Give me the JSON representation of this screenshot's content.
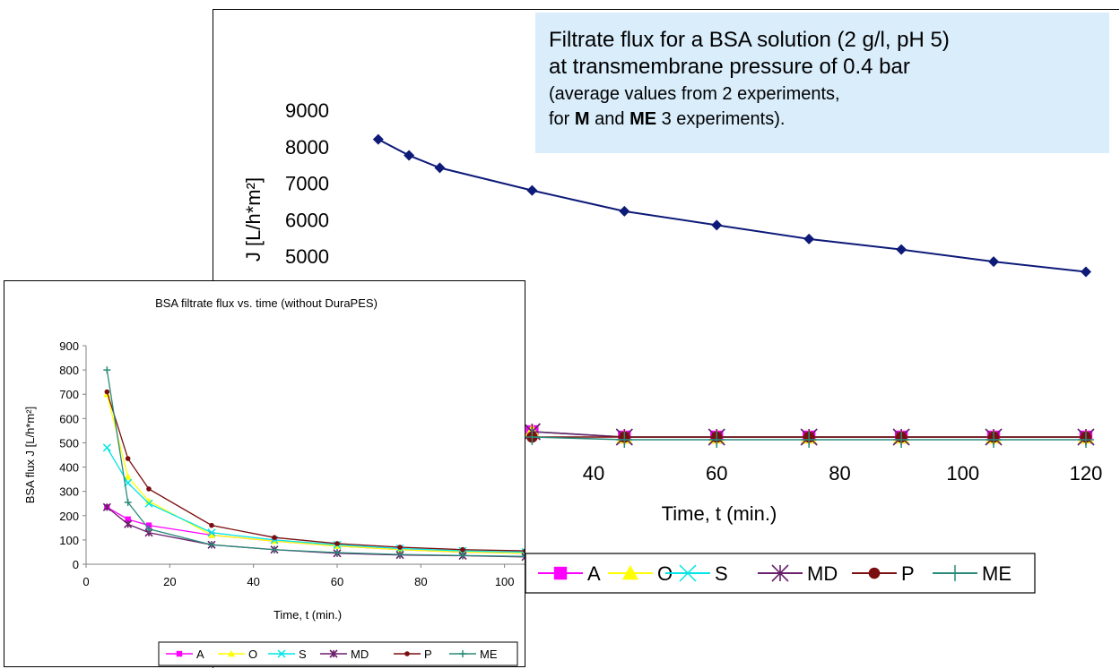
{
  "callout": {
    "line1": "Filtrate flux for a BSA solution (2 g/l, pH 5)",
    "line2": "at transmembrane pressure of 0.4 bar",
    "line3": "(average values from 2 experiments,",
    "line4_prefix": "for ",
    "line4_bold1": "M",
    "line4_mid": " and ",
    "line4_bold2": "ME",
    "line4_suffix": "  3 experiments)."
  },
  "chart_data": [
    {
      "id": "back",
      "type": "line",
      "title": "",
      "xlabel": "Time, t (min.)",
      "ylabel": "J [L/h*m²]",
      "x_ticks": [
        40,
        60,
        80,
        100,
        120
      ],
      "y_ticks": [
        5000,
        6000,
        7000,
        8000,
        9000
      ],
      "legend_placement": "bottom",
      "series": [
        {
          "name": "M",
          "color": "#0d1a78",
          "marker": "diamond",
          "x": [
            5,
            10,
            15,
            30,
            45,
            60,
            75,
            90,
            105,
            120
          ],
          "y": [
            8200,
            7760,
            7420,
            6800,
            6230,
            5850,
            5470,
            5180,
            4850,
            4570
          ]
        },
        {
          "name": "A",
          "color": "#ff00ff",
          "marker": "square",
          "x": [
            30,
            45,
            60,
            75,
            90,
            105,
            120
          ],
          "y": [
            540,
            530,
            530,
            530,
            530,
            530,
            530
          ]
        },
        {
          "name": "O",
          "color": "#ffff00",
          "marker": "triangle",
          "x": [
            30,
            45,
            60,
            75,
            90,
            105,
            120
          ],
          "y": [
            540,
            530,
            530,
            530,
            530,
            530,
            530
          ]
        },
        {
          "name": "S",
          "color": "#00e5e5",
          "marker": "x",
          "x": [
            30,
            45,
            60,
            75,
            90,
            105,
            120
          ],
          "y": [
            540,
            530,
            530,
            530,
            530,
            530,
            530
          ]
        },
        {
          "name": "MD",
          "color": "#6b1f6b",
          "marker": "star",
          "x": [
            30,
            45,
            60,
            75,
            90,
            105,
            120
          ],
          "y": [
            540,
            530,
            530,
            530,
            530,
            530,
            530
          ]
        },
        {
          "name": "P",
          "color": "#7b0e0e",
          "marker": "circle",
          "x": [
            30,
            45,
            60,
            75,
            90,
            105,
            120
          ],
          "y": [
            530,
            530,
            530,
            530,
            530,
            530,
            530
          ]
        },
        {
          "name": "ME",
          "color": "#2a8a7a",
          "marker": "plus",
          "x": [
            30,
            45,
            60,
            75,
            90,
            105,
            120
          ],
          "y": [
            530,
            525,
            525,
            525,
            525,
            525,
            525
          ]
        }
      ],
      "legend": [
        "A",
        "O",
        "S",
        "MD",
        "P",
        "ME"
      ]
    },
    {
      "id": "front",
      "type": "line",
      "title": "BSA filtrate flux vs. time (without DuraPES)",
      "xlabel": "Time, t (min.)",
      "ylabel": "BSA flux J [L/h*m²]",
      "xlim": [
        0,
        105
      ],
      "ylim": [
        0,
        900
      ],
      "x_ticks": [
        0,
        20,
        40,
        60,
        80,
        100
      ],
      "y_ticks": [
        0,
        100,
        200,
        300,
        400,
        500,
        600,
        700,
        800,
        900
      ],
      "legend_placement": "bottom",
      "series": [
        {
          "name": "A",
          "color": "#ff00ff",
          "marker": "square",
          "x": [
            5,
            10,
            15,
            30,
            45,
            60,
            75,
            90,
            105
          ],
          "y": [
            235,
            185,
            160,
            120,
            95,
            75,
            60,
            50,
            45
          ]
        },
        {
          "name": "O",
          "color": "#ffff00",
          "marker": "triangle",
          "x": [
            5,
            10,
            15,
            30,
            45,
            60,
            75,
            90,
            105
          ],
          "y": [
            700,
            360,
            260,
            120,
            95,
            75,
            60,
            50,
            45
          ]
        },
        {
          "name": "S",
          "color": "#00e5e5",
          "marker": "x",
          "x": [
            5,
            10,
            15,
            30,
            45,
            60,
            75,
            90,
            105
          ],
          "y": [
            480,
            335,
            250,
            130,
            100,
            80,
            65,
            55,
            50
          ]
        },
        {
          "name": "MD",
          "color": "#6b1f6b",
          "marker": "star",
          "x": [
            5,
            10,
            15,
            30,
            45,
            60,
            75,
            90,
            105
          ],
          "y": [
            235,
            165,
            130,
            80,
            60,
            45,
            38,
            35,
            30
          ]
        },
        {
          "name": "P",
          "color": "#7b0e0e",
          "marker": "circle",
          "x": [
            5,
            10,
            15,
            30,
            45,
            60,
            75,
            90,
            105
          ],
          "y": [
            710,
            435,
            310,
            160,
            110,
            85,
            70,
            60,
            55
          ]
        },
        {
          "name": "ME",
          "color": "#2a8a7a",
          "marker": "plus",
          "x": [
            5,
            10,
            15,
            30,
            45,
            60,
            75,
            90,
            105
          ],
          "y": [
            800,
            255,
            145,
            80,
            60,
            48,
            40,
            36,
            32
          ]
        }
      ],
      "legend": [
        "A",
        "O",
        "S",
        "MD",
        "P",
        "ME"
      ]
    }
  ]
}
